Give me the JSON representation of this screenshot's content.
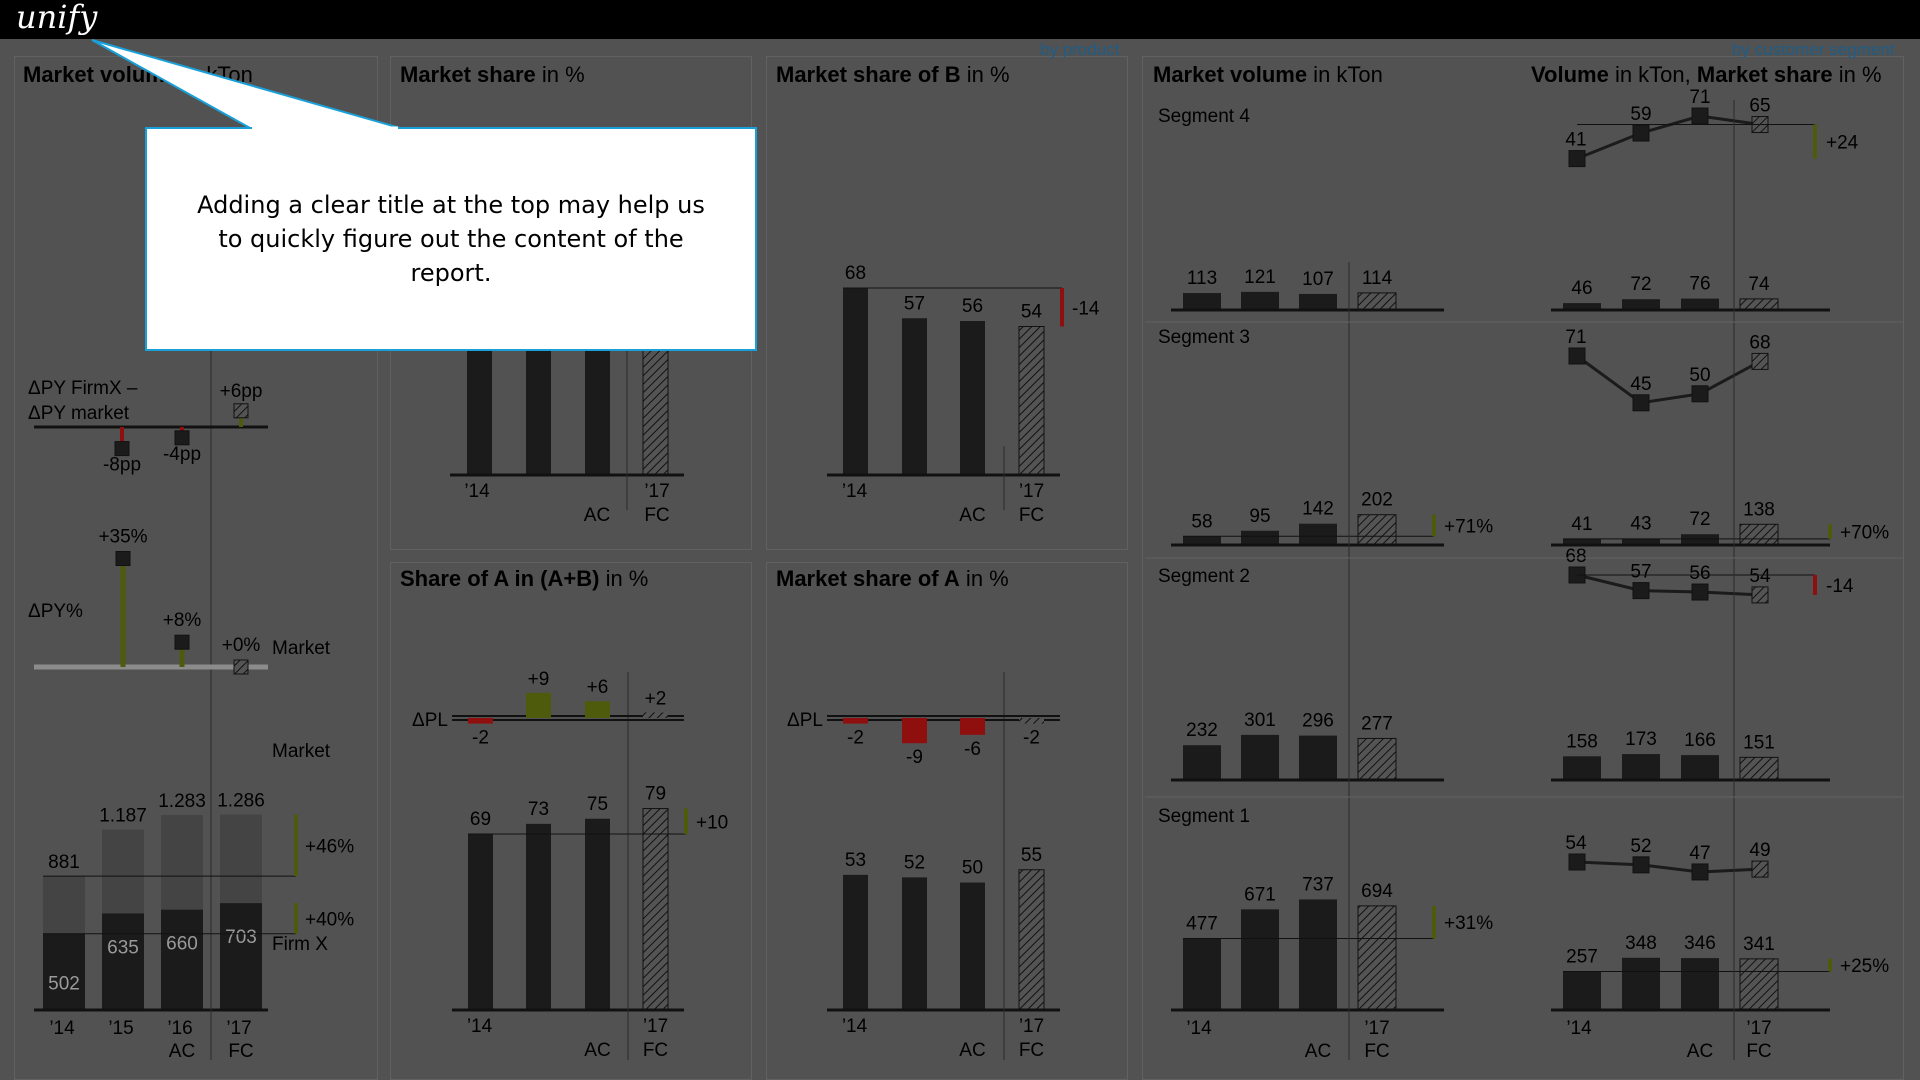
{
  "app": {
    "logo": "unify"
  },
  "links": {
    "by_product": "by product",
    "by_segment": "by customer segment"
  },
  "titles": {
    "p1": {
      "b": "Market volume",
      "r": " in kTon"
    },
    "p2": {
      "b": "Market share",
      "r": " in %"
    },
    "p3": {
      "b": "Market share of B",
      "r": " in %"
    },
    "p4": {
      "b": "Share of A in (A+B)",
      "r": " in %"
    },
    "p5": {
      "b": "Market share of A",
      "r": " in %"
    },
    "p6": {
      "b": "Market volume",
      "r": " in kTon"
    },
    "p7": {
      "b": "Volume",
      "r": " in kTon, ",
      "b2": "Market share",
      "r2": " in %"
    }
  },
  "callout": {
    "text": "Adding a clear title at the top may help us to quickly figure out the content of the report."
  },
  "chart_data": [
    {
      "id": "market-volume",
      "type": "bar",
      "categories": [
        "'14",
        "'15",
        "'16 AC",
        "'17 FC"
      ],
      "series": [
        {
          "name": "Firm X",
          "values": [
            502,
            635,
            660,
            703
          ]
        },
        {
          "name": "Market",
          "values": [
            881,
            1187,
            1283,
            1286
          ]
        }
      ],
      "total_labels": [
        "881",
        "1.187",
        "1.283",
        "1.286"
      ],
      "value_labels": [
        "502",
        "635",
        "660",
        "703"
      ],
      "deltas": [
        {
          "label": "+46%"
        },
        {
          "label": "+40%"
        }
      ],
      "dpy_percent": {
        "label": "ΔPY%",
        "values": [
          "+35%",
          "+8%",
          "+0%"
        ],
        "nums": [
          35,
          8,
          0
        ],
        "series_name": "Market"
      },
      "dpy_firm": {
        "label1": "ΔPY FirmX –",
        "label2": "ΔPY market",
        "values": [
          "-8pp",
          "-4pp",
          "+6pp"
        ],
        "nums": [
          -8,
          -4,
          6
        ]
      }
    },
    {
      "id": "market-share",
      "type": "bar",
      "categories": [
        "'14",
        "",
        "AC",
        "'17 FC"
      ],
      "values": [
        null,
        null,
        null,
        null
      ]
    },
    {
      "id": "market-share-b",
      "type": "bar",
      "categories": [
        "'14",
        "",
        "AC",
        "'17 FC"
      ],
      "values": [
        68,
        57,
        56,
        54
      ],
      "delta": "-14"
    },
    {
      "id": "share-a-in-ab",
      "type": "bar",
      "categories": [
        "'14",
        "",
        "AC",
        "'17 FC"
      ],
      "values": [
        69,
        73,
        75,
        79
      ],
      "delta": "+10",
      "dpl_label": "ΔPL",
      "dpl": [
        -2,
        9,
        6,
        2
      ],
      "dpl_labels": [
        "-2",
        "+9",
        "+6",
        "+2"
      ]
    },
    {
      "id": "market-share-a",
      "type": "bar",
      "categories": [
        "'14",
        "",
        "AC",
        "'17 FC"
      ],
      "values": [
        53,
        52,
        50,
        55
      ],
      "dpl_label": "ΔPL",
      "dpl": [
        -2,
        -9,
        -6,
        -2
      ],
      "dpl_labels": [
        "-2",
        "-9",
        "-6",
        "-2"
      ]
    },
    {
      "id": "segments",
      "type": "bar",
      "categories": [
        "'14",
        "",
        "AC",
        "'17 FC"
      ],
      "segments": [
        {
          "name": "Segment 4",
          "volume": [
            113,
            121,
            107,
            114
          ],
          "delta": "",
          "share_bars": [
            46,
            72,
            76,
            74
          ],
          "share_line": [
            41,
            59,
            71,
            65
          ],
          "share_delta": "+24",
          "share_bar_delta": ""
        },
        {
          "name": "Segment 3",
          "volume": [
            58,
            95,
            142,
            202
          ],
          "delta": "+71%",
          "share_bars": [
            41,
            43,
            72,
            138
          ],
          "share_line": [
            71,
            45,
            50,
            68
          ],
          "share_delta": "",
          "share_bar_delta": "+70%"
        },
        {
          "name": "Segment 2",
          "volume": [
            232,
            301,
            296,
            277
          ],
          "delta": "",
          "share_bars": [
            158,
            173,
            166,
            151
          ],
          "share_line": [
            68,
            57,
            56,
            54
          ],
          "share_delta": "-14",
          "share_bar_delta": ""
        },
        {
          "name": "Segment 1",
          "volume": [
            477,
            671,
            737,
            694
          ],
          "delta": "+31%",
          "share_bars": [
            257,
            348,
            346,
            341
          ],
          "share_line": [
            54,
            52,
            47,
            49
          ],
          "share_delta": "",
          "share_bar_delta": "+25%"
        }
      ]
    }
  ],
  "colors": {
    "bar": "#1b1b1b",
    "hatch": "#7a7a7a",
    "pos": "#4e5a0c",
    "neg": "#8f0f0f",
    "callout_border": "#1aa0d8",
    "background": "#525252",
    "bar_light": "#444444",
    "bar_mid": "#3a3a3a"
  }
}
